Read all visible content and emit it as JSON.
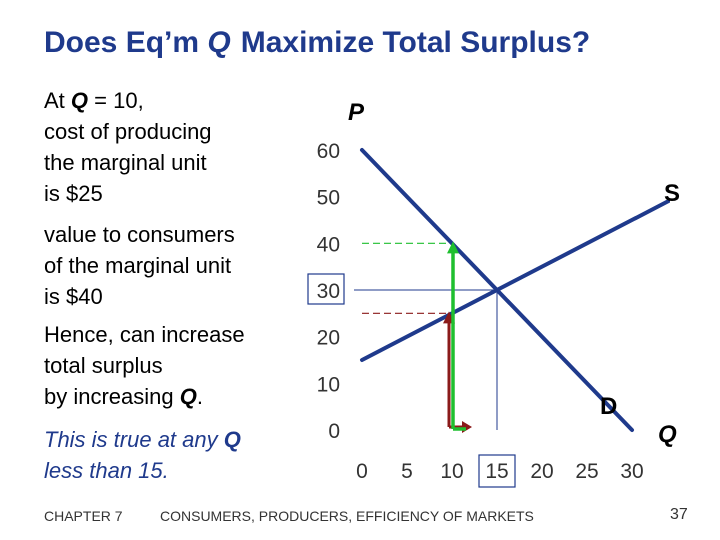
{
  "slide": {
    "title_pre": "Does Eq’m",
    "title_var": "Q",
    "title_post": "Maximize Total Surplus?",
    "p1_l1_a": "At ",
    "p1_l1_b": "Q",
    "p1_l1_c": " = 10,",
    "p1_l2": "cost of producing",
    "p1_l3": "the marginal unit",
    "p1_l4": "is $25",
    "p2_l1": "value to consumers",
    "p2_l2": "of the marginal unit",
    "p2_l3": "is $40",
    "p3_l1": "Hence, can increase",
    "p3_l2": "total surplus",
    "p3_l3_a": "by increasing ",
    "p3_l3_b": "Q",
    "p3_l3_c": ".",
    "p4_l1_a": "This is true at any ",
    "p4_l1_b": "Q",
    "p4_l2": "less than 15.",
    "footer_chapter": "CHAPTER 7",
    "footer_subject": "CONSUMERS, PRODUCERS, EFFICIENCY OF MARKETS",
    "page_number": "37"
  },
  "colors": {
    "title": "#1f3a8c",
    "curves": "#1f3a8c",
    "green": "#1fbf2f",
    "red": "#8b1a1a",
    "box": "#1f3a8c"
  },
  "chart_data": {
    "type": "line",
    "ylabel": "P",
    "xlabel": "Q",
    "xlim": [
      0,
      30
    ],
    "ylim": [
      0,
      60
    ],
    "x_ticks": [
      "0",
      "5",
      "10",
      "15",
      "20",
      "25",
      "30"
    ],
    "y_ticks": [
      "0",
      "10",
      "20",
      "30",
      "40",
      "50",
      "60"
    ],
    "series": [
      {
        "name": "S",
        "points": [
          [
            0,
            15
          ],
          [
            35,
            50
          ]
        ]
      },
      {
        "name": "D",
        "points": [
          [
            0,
            60
          ],
          [
            30,
            0
          ]
        ]
      }
    ],
    "equilibrium": {
      "x": 15,
      "y": 30
    },
    "marginal_unit_q": 10,
    "cost_of_marginal_unit": 25,
    "value_of_marginal_unit": 40,
    "highlighted_ticks": {
      "x": "15",
      "y": "30"
    },
    "grid": false
  }
}
